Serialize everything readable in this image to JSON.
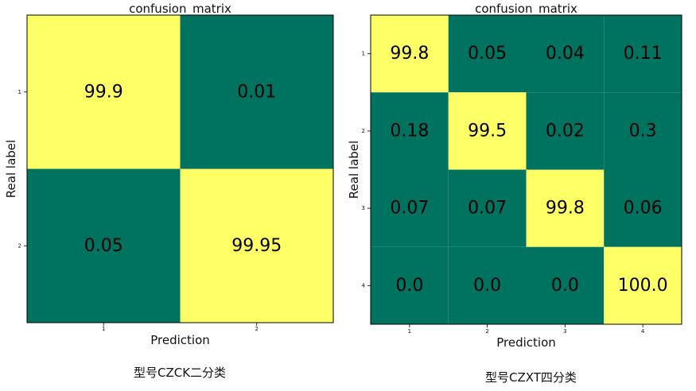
{
  "colors": {
    "high": "#ffff66",
    "low": "#007360",
    "border": "#000000"
  },
  "chart_data": [
    {
      "type": "heatmap",
      "title": "confusion_matrix",
      "xlabel": "Prediction",
      "ylabel": "Real label",
      "x_categories": [
        "1",
        "2"
      ],
      "y_categories": [
        "1",
        "2"
      ],
      "values": [
        [
          99.9,
          0.01
        ],
        [
          0.05,
          99.95
        ]
      ],
      "cell_text": [
        [
          "99.9",
          "0.01"
        ],
        [
          "0.05",
          "99.95"
        ]
      ],
      "caption": "型号CZCK二分类"
    },
    {
      "type": "heatmap",
      "title": "confusion_matrix",
      "xlabel": "Prediction",
      "ylabel": "Real label",
      "x_categories": [
        "1",
        "2",
        "3",
        "4"
      ],
      "y_categories": [
        "1",
        "2",
        "3",
        "4"
      ],
      "values": [
        [
          99.8,
          0.05,
          0.04,
          0.11
        ],
        [
          0.18,
          99.5,
          0.02,
          0.3
        ],
        [
          0.07,
          0.07,
          99.8,
          0.06
        ],
        [
          0.0,
          0.0,
          0.0,
          100.0
        ]
      ],
      "cell_text": [
        [
          "99.8",
          "0.05",
          "0.04",
          "0.11"
        ],
        [
          "0.18",
          "99.5",
          "0.02",
          "0.3"
        ],
        [
          "0.07",
          "0.07",
          "99.8",
          "0.06"
        ],
        [
          "0.0",
          "0.0",
          "0.0",
          "100.0"
        ]
      ],
      "caption": "型号CZXT四分类"
    }
  ]
}
